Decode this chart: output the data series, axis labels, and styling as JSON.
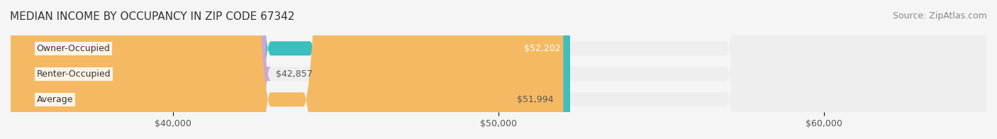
{
  "title": "MEDIAN INCOME BY OCCUPANCY IN ZIP CODE 67342",
  "source": "Source: ZipAtlas.com",
  "categories": [
    "Owner-Occupied",
    "Renter-Occupied",
    "Average"
  ],
  "values": [
    52202,
    42857,
    51994
  ],
  "bar_colors": [
    "#3BBFBF",
    "#C9A8D4",
    "#F5B963"
  ],
  "bar_bg_color": "#EEEEEE",
  "label_values": [
    "$52,202",
    "$42,857",
    "$51,994"
  ],
  "xlim_min": 35000,
  "xlim_max": 65000,
  "xticks": [
    40000,
    50000,
    60000
  ],
  "xtick_labels": [
    "$40,000",
    "$50,000",
    "$60,000"
  ],
  "title_fontsize": 11,
  "source_fontsize": 9,
  "label_fontsize": 9,
  "tick_fontsize": 9,
  "bar_height": 0.55,
  "bg_color": "#F5F5F5",
  "bar_label_inside_color": "#FFFFFF",
  "bar_label_outside_color": "#555555"
}
